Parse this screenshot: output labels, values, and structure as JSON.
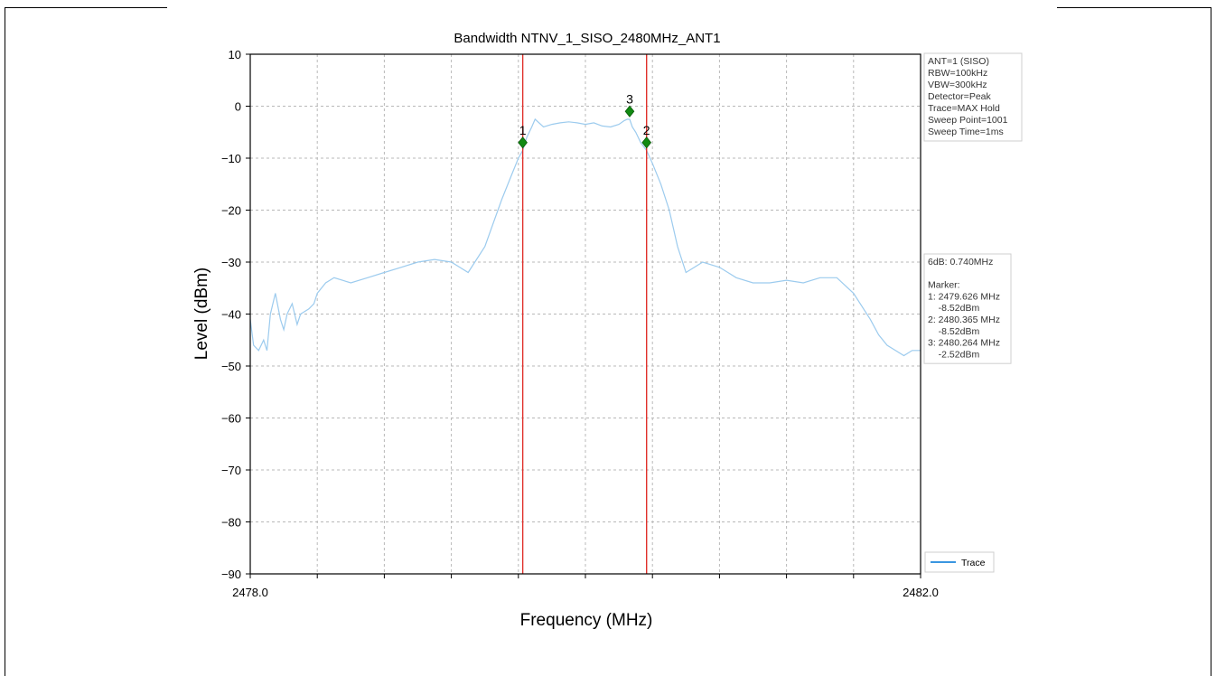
{
  "chart_data": {
    "type": "line",
    "title": "Bandwidth NTNV_1_SISO_2480MHz_ANT1",
    "xlabel": "Frequency (MHz)",
    "ylabel": "Level (dBm)",
    "xlim": [
      2478.0,
      2482.0
    ],
    "ylim": [
      -90,
      10
    ],
    "xticks": [
      2478.0,
      2482.0
    ],
    "xtick_labels": [
      "2478.0",
      "2482.0"
    ],
    "yticks": [
      10,
      0,
      -10,
      -20,
      -30,
      -40,
      -50,
      -60,
      -70,
      -80,
      -90
    ],
    "grid": true,
    "legend": {
      "position": "bottom-right",
      "entries": [
        "Trace"
      ]
    },
    "series": [
      {
        "name": "Trace",
        "color": "#9ccbee",
        "x": [
          2478.0,
          2478.02,
          2478.05,
          2478.08,
          2478.1,
          2478.12,
          2478.15,
          2478.18,
          2478.2,
          2478.22,
          2478.25,
          2478.28,
          2478.3,
          2478.35,
          2478.38,
          2478.4,
          2478.45,
          2478.5,
          2478.6,
          2478.7,
          2478.8,
          2478.9,
          2479.0,
          2479.1,
          2479.2,
          2479.3,
          2479.4,
          2479.5,
          2479.55,
          2479.6,
          2479.626,
          2479.65,
          2479.68,
          2479.7,
          2479.75,
          2479.8,
          2479.85,
          2479.9,
          2479.95,
          2480.0,
          2480.05,
          2480.1,
          2480.15,
          2480.2,
          2480.23,
          2480.25,
          2480.264,
          2480.28,
          2480.3,
          2480.33,
          2480.365,
          2480.4,
          2480.45,
          2480.5,
          2480.55,
          2480.6,
          2480.65,
          2480.7,
          2480.75,
          2480.8,
          2480.85,
          2480.9,
          2481.0,
          2481.1,
          2481.2,
          2481.3,
          2481.4,
          2481.5,
          2481.6,
          2481.7,
          2481.75,
          2481.8,
          2481.85,
          2481.9,
          2481.95,
          2482.0
        ],
        "y": [
          -41,
          -46,
          -47,
          -45,
          -47,
          -40,
          -36,
          -41,
          -43,
          -40,
          -38,
          -42,
          -40,
          -39,
          -38,
          -36,
          -34,
          -33,
          -34,
          -33,
          -32,
          -31,
          -30,
          -29.5,
          -30,
          -32,
          -27,
          -18,
          -14,
          -10,
          -8.52,
          -6,
          -4,
          -2.5,
          -4,
          -3.5,
          -3.2,
          -3,
          -3.2,
          -3.5,
          -3.2,
          -3.8,
          -4,
          -3.5,
          -2.8,
          -2.5,
          -2.52,
          -4,
          -5,
          -7,
          -8.52,
          -11,
          -15,
          -20,
          -27,
          -32,
          -31,
          -30,
          -30.5,
          -31,
          -32,
          -33,
          -34,
          -34,
          -33.5,
          -34,
          -33,
          -33,
          -36,
          -41,
          -44,
          -46,
          -47,
          -48,
          -47,
          -47
        ]
      }
    ],
    "vlines": [
      {
        "x": 2479.626,
        "color": "#e0302b"
      },
      {
        "x": 2480.365,
        "color": "#e0302b"
      }
    ],
    "markers": [
      {
        "label": "1",
        "x": 2479.626,
        "y": -7,
        "color": "#128a12"
      },
      {
        "label": "2",
        "x": 2480.365,
        "y": -7,
        "color": "#128a12"
      },
      {
        "label": "3",
        "x": 2480.264,
        "y": -1,
        "color": "#128a12"
      }
    ],
    "info_box_settings": [
      "ANT=1 (SISO)",
      "RBW=100kHz",
      "VBW=300kHz",
      "Detector=Peak",
      "Trace=MAX Hold",
      "Sweep Point=1001",
      "Sweep Time=1ms"
    ],
    "info_box_results": [
      "6dB: 0.740MHz",
      "",
      "Marker:",
      "1: 2479.626 MHz",
      "    -8.52dBm",
      "2: 2480.365 MHz",
      "    -8.52dBm",
      "3: 2480.264 MHz",
      "    -2.52dBm"
    ]
  }
}
